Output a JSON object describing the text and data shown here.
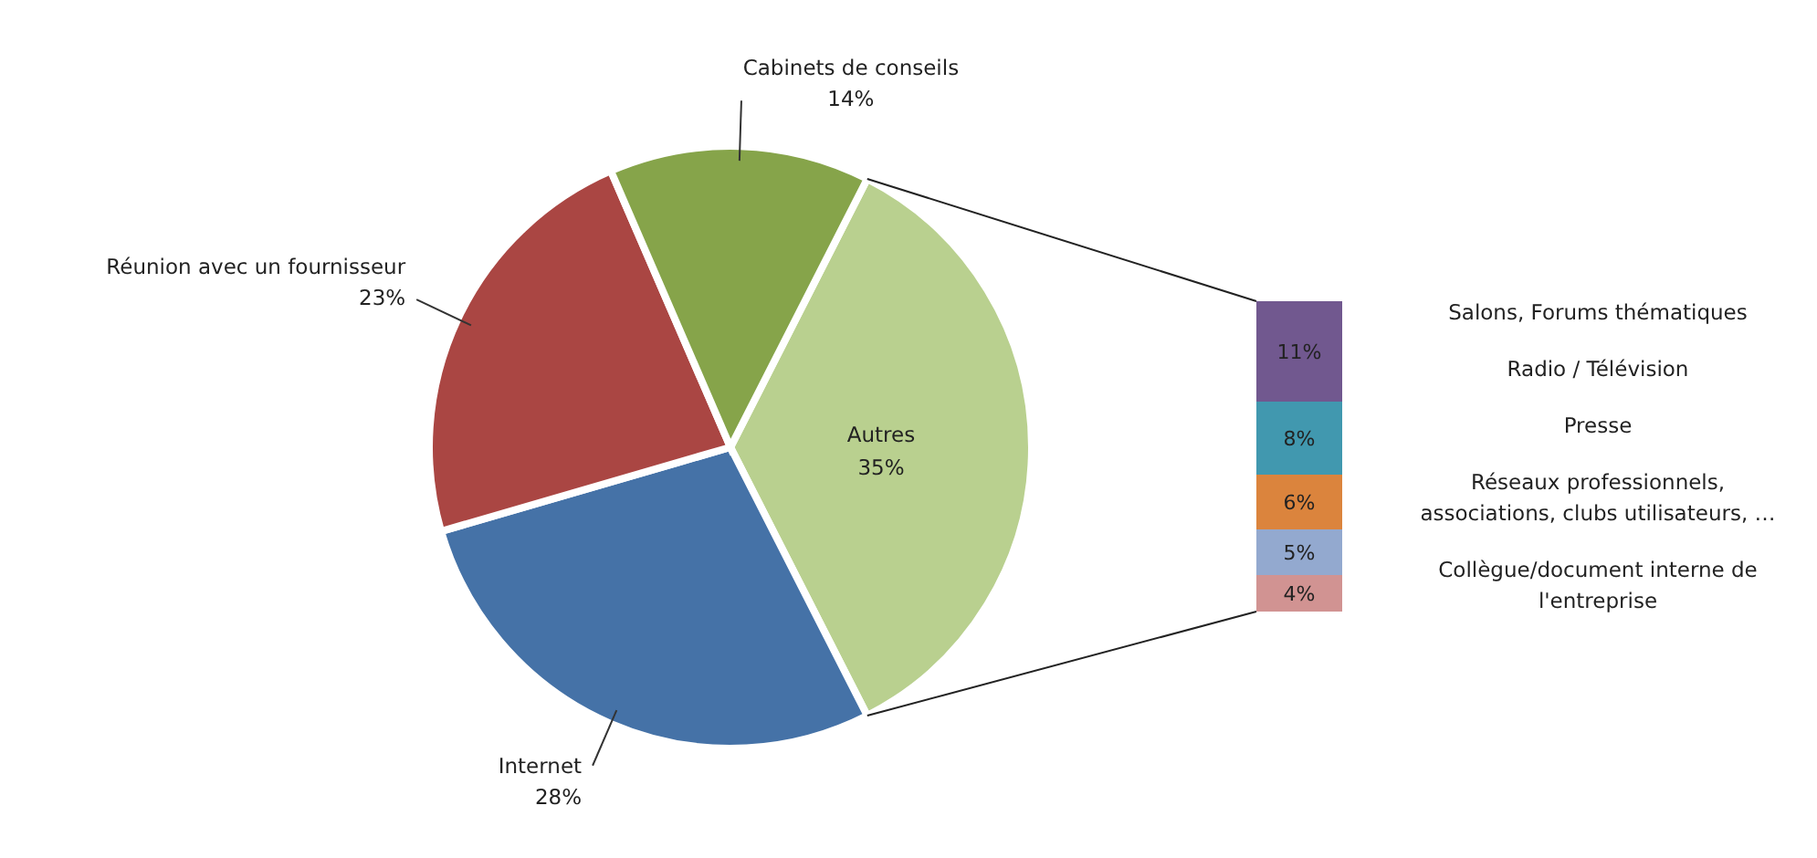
{
  "chart_data": [
    {
      "type": "pie",
      "categories": [
        "Autres",
        "Internet",
        "Réunion avec un fournisseur",
        "Cabinets de conseils"
      ],
      "values": [
        35,
        28,
        23,
        14
      ],
      "value_labels": [
        "35%",
        "28%",
        "23%",
        "14%"
      ],
      "colors": [
        "#b9d08f",
        "#4572a7",
        "#aa4643",
        "#86a44a"
      ]
    },
    {
      "type": "bar",
      "stacked": true,
      "categories": [
        null
      ],
      "series": [
        {
          "name": "Collègue/document interne de l'entreprise",
          "color": "#d19392",
          "values": [
            4
          ],
          "value_labels": [
            "4%"
          ]
        },
        {
          "name": "Réseaux professionnels, associations, clubs utilisateurs, …",
          "color": "#93a9cf",
          "values": [
            5
          ],
          "value_labels": [
            "5%"
          ]
        },
        {
          "name": "Presse",
          "color": "#db843d",
          "values": [
            6
          ],
          "value_labels": [
            "6%"
          ]
        },
        {
          "name": "Radio / Télévision",
          "color": "#4198af",
          "values": [
            8
          ],
          "value_labels": [
            "8%"
          ]
        },
        {
          "name": "Salons, Forums thématiques",
          "color": "#71588f",
          "values": [
            11
          ],
          "value_labels": [
            "11%"
          ]
        }
      ]
    }
  ]
}
